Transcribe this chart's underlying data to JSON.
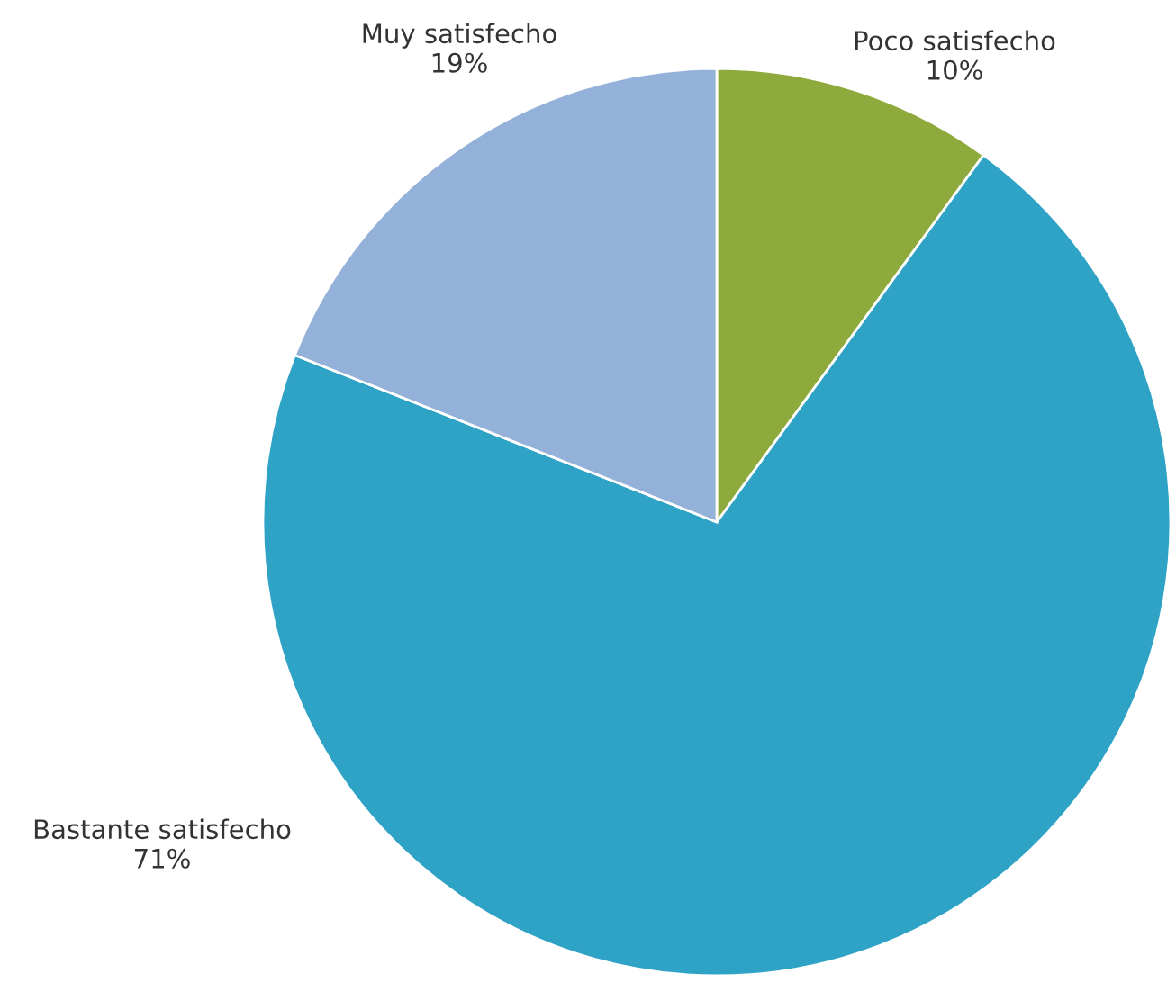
{
  "chart_data": {
    "type": "pie",
    "categories": [
      "Poco satisfecho",
      "Bastante satisfecho",
      "Muy satisfecho"
    ],
    "values": [
      10,
      71,
      19
    ],
    "colors": [
      "#8faa3c",
      "#2ea3c6",
      "#94b1da"
    ],
    "value_labels": [
      "10%",
      "71%",
      "19%"
    ]
  }
}
